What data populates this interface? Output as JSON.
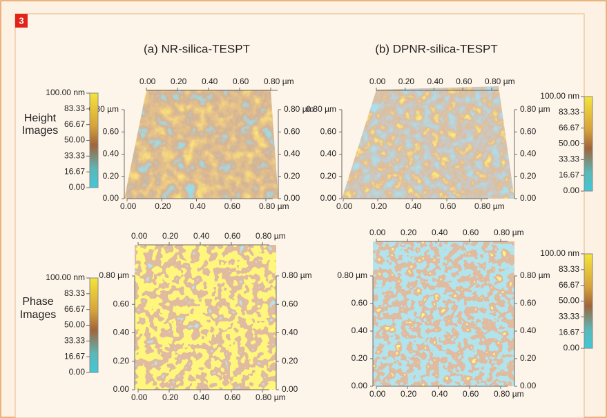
{
  "figure_number": "3",
  "columns": [
    {
      "title": "(a) NR-silica-TESPT"
    },
    {
      "title": "(b) DPNR-silica-TESPT"
    }
  ],
  "rows": [
    {
      "label": [
        "Height",
        "Images"
      ]
    },
    {
      "label": [
        "Phase",
        "Images"
      ]
    }
  ],
  "colorbar_ticks": [
    "100.00 nm",
    "83.33",
    "66.67",
    "50.00",
    "33.33",
    "16.67",
    "0.00"
  ],
  "axis_ticks": [
    "0.00",
    "0.20",
    "0.40",
    "0.60",
    "0.80 µm"
  ]
}
